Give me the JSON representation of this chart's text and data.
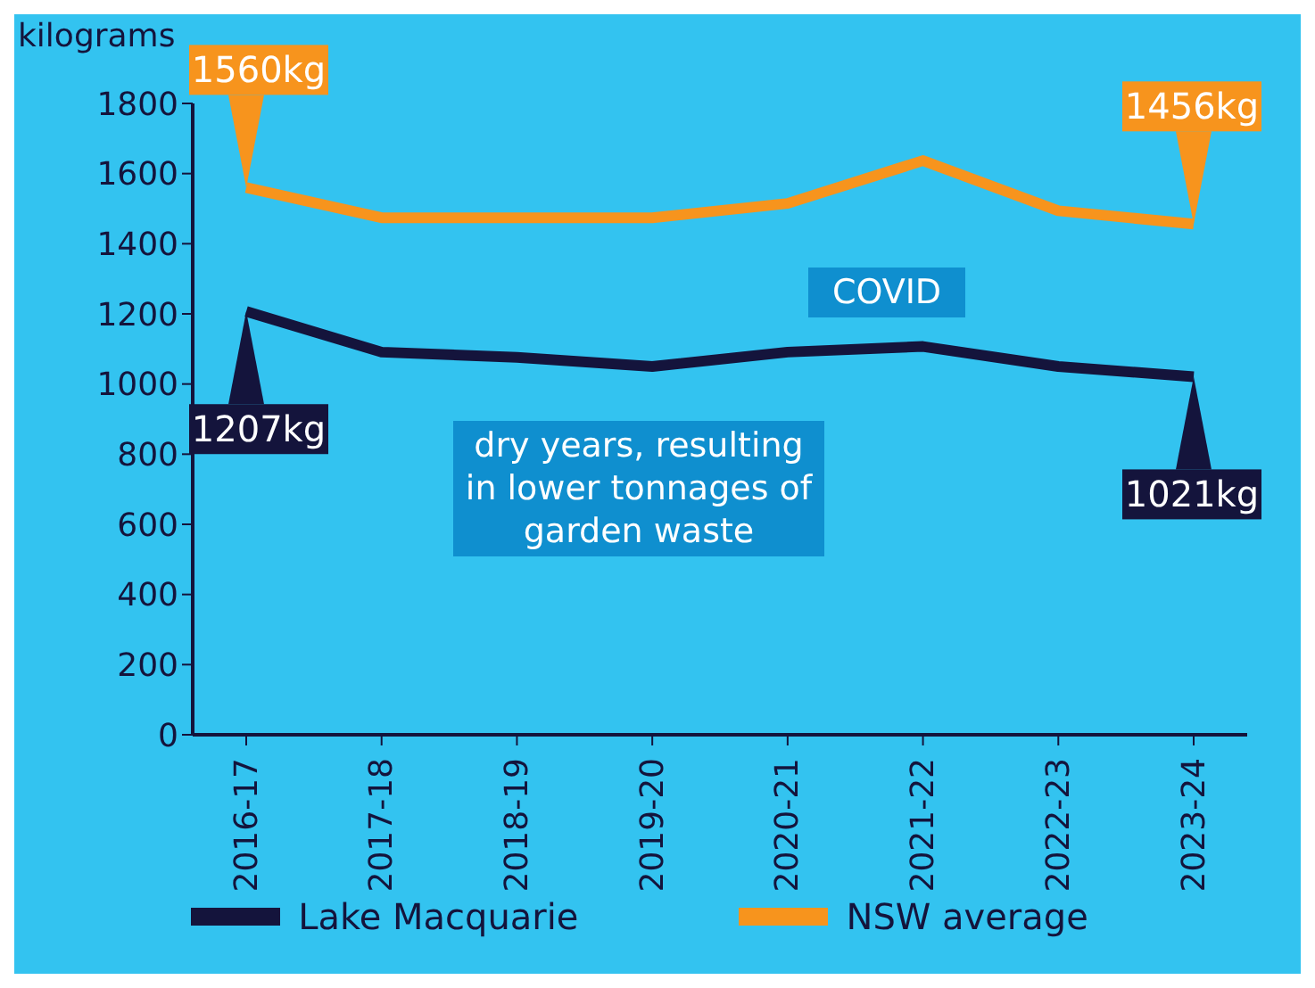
{
  "chart_data": {
    "type": "line",
    "ylabel": "kilograms",
    "categories": [
      "2016-17",
      "2017-18",
      "2018-19",
      "2019-20",
      "2020-21",
      "2021-22",
      "2022-23",
      "2023-24"
    ],
    "series": [
      {
        "name": "Lake Macquarie",
        "color": "#14143c",
        "values": [
          1207,
          1091,
          1076,
          1050,
          1091,
          1107,
          1050,
          1021
        ],
        "value_labels": [
          "1207kg",
          null,
          null,
          null,
          null,
          null,
          null,
          "1021kg"
        ]
      },
      {
        "name": "NSW average",
        "color": "#f7941d",
        "values": [
          1560,
          1474,
          1474,
          1474,
          1515,
          1637,
          1494,
          1456
        ],
        "value_labels": [
          "1560kg",
          null,
          null,
          null,
          null,
          null,
          null,
          "1456kg"
        ]
      }
    ],
    "ylim": [
      0,
      1800
    ],
    "yticks": [
      0,
      200,
      400,
      600,
      800,
      1000,
      1200,
      1400,
      1600,
      1800
    ],
    "legend": "bottom",
    "marker": "none",
    "line_style": "solid",
    "annotations": [
      "COVID",
      "dry years, resulting in lower tonnages of garden waste"
    ]
  }
}
